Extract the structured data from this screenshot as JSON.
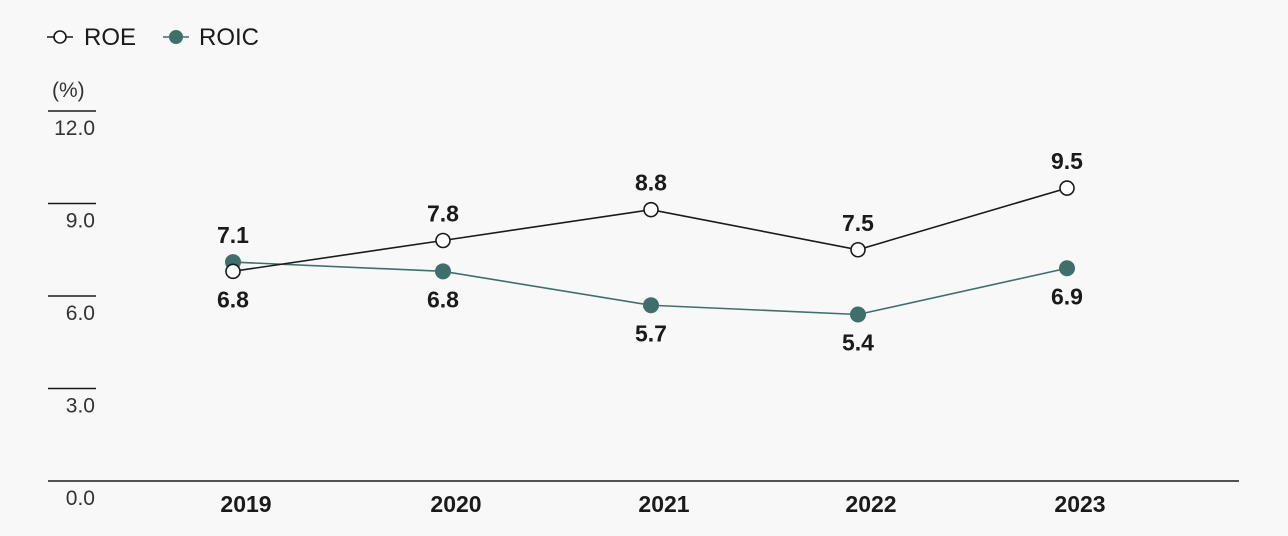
{
  "chart_data": {
    "type": "line",
    "title": "",
    "xlabel": "",
    "ylabel": "(%)",
    "categories": [
      "2019",
      "2020",
      "2021",
      "2022",
      "2023"
    ],
    "ylim": [
      0,
      12
    ],
    "yticks": [
      "0.0",
      "3.0",
      "6.0",
      "9.0",
      "12.0"
    ],
    "legend_position": "top-left",
    "grid": false,
    "series": [
      {
        "name": "ROE",
        "values": [
          6.8,
          7.8,
          8.8,
          7.5,
          9.5
        ],
        "value_labels": [
          "6.8",
          "7.8",
          "8.8",
          "7.5",
          "9.5"
        ],
        "color": "#1a1a1a",
        "marker": "hollow-circle"
      },
      {
        "name": "ROIC",
        "values": [
          7.1,
          6.8,
          5.7,
          5.4,
          6.9
        ],
        "value_labels": [
          "7.1",
          "6.8",
          "5.7",
          "5.4",
          "6.9"
        ],
        "color": "#3f6f6b",
        "marker": "filled-circle"
      }
    ]
  }
}
